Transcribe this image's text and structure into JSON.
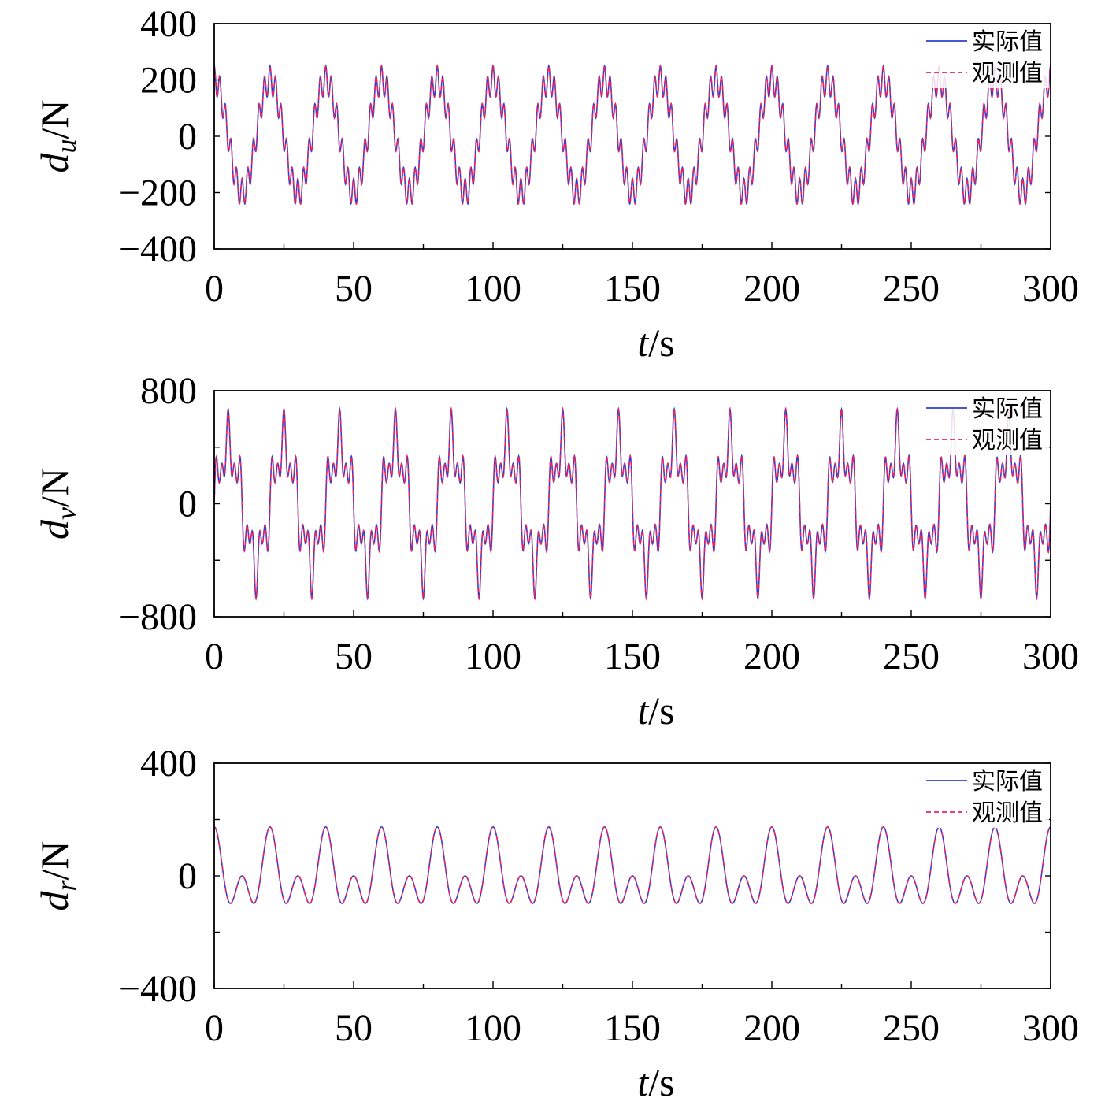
{
  "colors": {
    "actual": "#2b3fd6",
    "observed": "#e8245c",
    "axis": "#000000",
    "background": "#ffffff"
  },
  "chart_data": [
    {
      "type": "line",
      "ylabel_main": "d",
      "ylabel_sub": "u",
      "ylabel_unit": "/N",
      "xlabel_main": "t",
      "xlabel_unit": "/s",
      "xlim": [
        0,
        300
      ],
      "ylim": [
        -400,
        400
      ],
      "x_ticks": [
        "0",
        "50",
        "100",
        "150",
        "200",
        "250",
        "300"
      ],
      "y_ticks": [
        "400",
        "200",
        "0",
        "−200",
        "−400"
      ],
      "y_tick_values": [
        400,
        200,
        0,
        -200,
        -400
      ],
      "legend": {
        "placement": "top-right",
        "entries": [
          "实际值",
          "观测值"
        ]
      },
      "signal": {
        "components": [
          {
            "amplitude": 200,
            "period": 20,
            "phase": 1.5708
          },
          {
            "amplitude": 50,
            "period": 2,
            "phase": 1.5708
          }
        ],
        "x_step": 0.1
      },
      "series": [
        {
          "name": "实际值",
          "style": "solid"
        },
        {
          "name": "观测值",
          "style": "dashed"
        }
      ]
    },
    {
      "type": "line",
      "ylabel_main": "d",
      "ylabel_sub": "v",
      "ylabel_unit": "/N",
      "xlabel_main": "t",
      "xlabel_unit": "/s",
      "xlim": [
        0,
        300
      ],
      "ylim": [
        -800,
        800
      ],
      "x_ticks": [
        "0",
        "50",
        "100",
        "150",
        "200",
        "250",
        "300"
      ],
      "y_ticks": [
        "800",
        "0",
        "−800"
      ],
      "y_tick_values": [
        800,
        0,
        -800
      ],
      "legend": {
        "placement": "top-right",
        "entries": [
          "实际值",
          "观测值"
        ]
      },
      "signal": {
        "components": [
          {
            "amplitude": 400,
            "period": 20,
            "phase": 0
          },
          {
            "amplitude": 150,
            "period": 4,
            "phase": 0
          },
          {
            "amplitude": 120,
            "period": 2.222,
            "phase": 0
          }
        ],
        "x_step": 0.1
      },
      "series": [
        {
          "name": "实际值",
          "style": "solid"
        },
        {
          "name": "观测值",
          "style": "dashed"
        }
      ]
    },
    {
      "type": "line",
      "ylabel_main": "d",
      "ylabel_sub": "r",
      "ylabel_unit": "/N",
      "xlabel_main": "t",
      "xlabel_unit": "/s",
      "xlim": [
        0,
        300
      ],
      "ylim": [
        -400,
        400
      ],
      "x_ticks": [
        "0",
        "50",
        "100",
        "150",
        "200",
        "250",
        "300"
      ],
      "y_ticks": [
        "400",
        "0",
        "−400"
      ],
      "y_tick_values": [
        400,
        0,
        -400
      ],
      "legend": {
        "placement": "top-right",
        "entries": [
          "实际值",
          "观测值"
        ]
      },
      "signal": {
        "components": [
          {
            "amplitude": 87,
            "period": 20,
            "phase": 1.5708
          },
          {
            "amplitude": 87,
            "period": 10,
            "phase": 1.5708
          }
        ],
        "x_step": 0.1
      },
      "series": [
        {
          "name": "实际值",
          "style": "solid"
        },
        {
          "name": "观测值",
          "style": "dashed"
        }
      ]
    }
  ]
}
